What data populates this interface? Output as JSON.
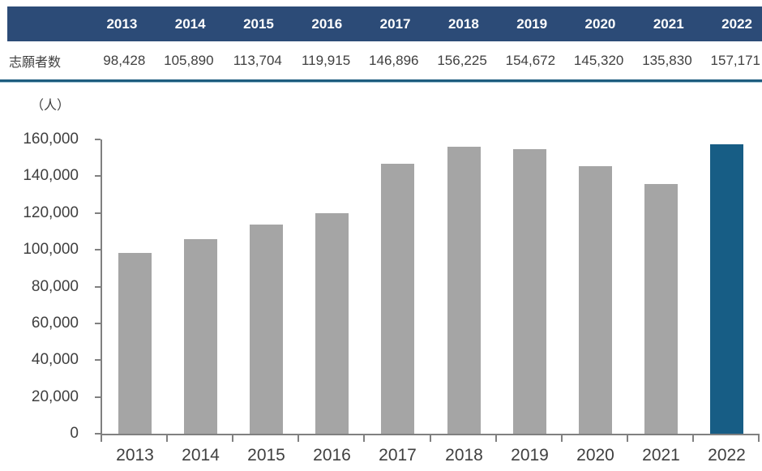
{
  "table": {
    "row_label": "志願者数",
    "years": [
      "2013",
      "2014",
      "2015",
      "2016",
      "2017",
      "2018",
      "2019",
      "2020",
      "2021",
      "2022"
    ],
    "values_display": [
      "98,428",
      "105,890",
      "113,704",
      "119,915",
      "146,896",
      "156,225",
      "154,672",
      "145,320",
      "135,830",
      "157,171"
    ]
  },
  "chart_data": {
    "type": "bar",
    "title": "",
    "unit_label": "（人）",
    "categories": [
      "2013",
      "2014",
      "2015",
      "2016",
      "2017",
      "2018",
      "2019",
      "2020",
      "2021",
      "2022"
    ],
    "values": [
      98428,
      105890,
      113704,
      119915,
      146896,
      156225,
      154672,
      145320,
      135830,
      157171
    ],
    "series_name": "志願者数",
    "xlabel": "",
    "ylabel": "（人）",
    "ylim": [
      0,
      160000
    ],
    "ytick_interval": 20000,
    "ytick_labels": [
      "0",
      "20,000",
      "40,000",
      "60,000",
      "80,000",
      "100,000",
      "120,000",
      "140,000",
      "160,000"
    ],
    "grid": false,
    "legend": false,
    "highlight_index": 9
  },
  "colors": {
    "header_bg": "#2c4b77",
    "header_text": "#ffffff",
    "body_text": "#404040",
    "accent_border": "#1d5c7e",
    "bar_default": "#a5a5a5",
    "bar_highlight": "#175d85",
    "axis": "#808080"
  }
}
